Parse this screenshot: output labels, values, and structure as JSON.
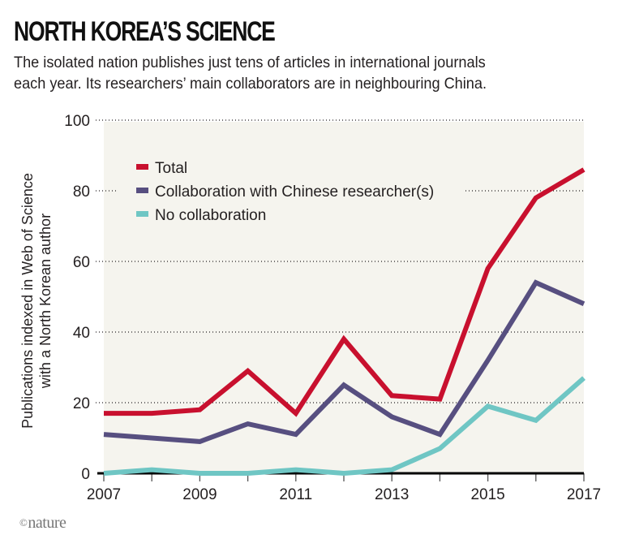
{
  "header": {
    "title": "NORTH KOREA’S SCIENCE",
    "subtitle_line1": "The isolated nation publishes just tens of articles in international journals",
    "subtitle_line2": "each year. Its researchers’ main collaborators are in neighbouring China."
  },
  "credit": {
    "symbol": "©",
    "text": "nature"
  },
  "colors": {
    "total": "#c8102e",
    "collab": "#574f80",
    "nocollab": "#6fc6c4",
    "plot_bg": "#f5f4ee",
    "grid": "#231f20",
    "axis": "#000000"
  },
  "chart_data": {
    "type": "line",
    "title": "NORTH KOREA’S SCIENCE",
    "subtitle": "The isolated nation publishes just tens of articles in international journals each year. Its researchers’ main collaborators are in neighbouring China.",
    "xlabel": "",
    "ylabel": "Publications indexed in Web of Science with a North Korean author",
    "ylabel_line1": "Publications indexed in Web of Science",
    "ylabel_line2": "with a North Korean author",
    "x": [
      2007,
      2008,
      2009,
      2010,
      2011,
      2012,
      2013,
      2014,
      2015,
      2016,
      2017
    ],
    "xlim": [
      2007,
      2017
    ],
    "ylim": [
      0,
      100
    ],
    "x_ticks": [
      2007,
      2008,
      2009,
      2010,
      2011,
      2012,
      2013,
      2014,
      2015,
      2016,
      2017
    ],
    "x_tick_labels": [
      "2007",
      "",
      "2009",
      "",
      "2011",
      "",
      "2013",
      "",
      "2015",
      "",
      "2017"
    ],
    "y_ticks": [
      0,
      20,
      40,
      60,
      80,
      100
    ],
    "y_tick_labels": [
      "0",
      "20",
      "40",
      "60",
      "80",
      "100"
    ],
    "grid": "horizontal dotted",
    "legend_position": "top-left",
    "series": [
      {
        "key": "total",
        "name": "Total",
        "values": [
          17,
          17,
          18,
          29,
          17,
          38,
          22,
          21,
          58,
          78,
          86
        ]
      },
      {
        "key": "collab",
        "name": "Collaboration with Chinese researcher(s)",
        "values": [
          11,
          10,
          9,
          14,
          11,
          25,
          16,
          11,
          32,
          54,
          48
        ]
      },
      {
        "key": "nocollab",
        "name": "No collaboration",
        "values": [
          0,
          1,
          0,
          0,
          1,
          0,
          1,
          7,
          19,
          15,
          27
        ]
      }
    ]
  }
}
